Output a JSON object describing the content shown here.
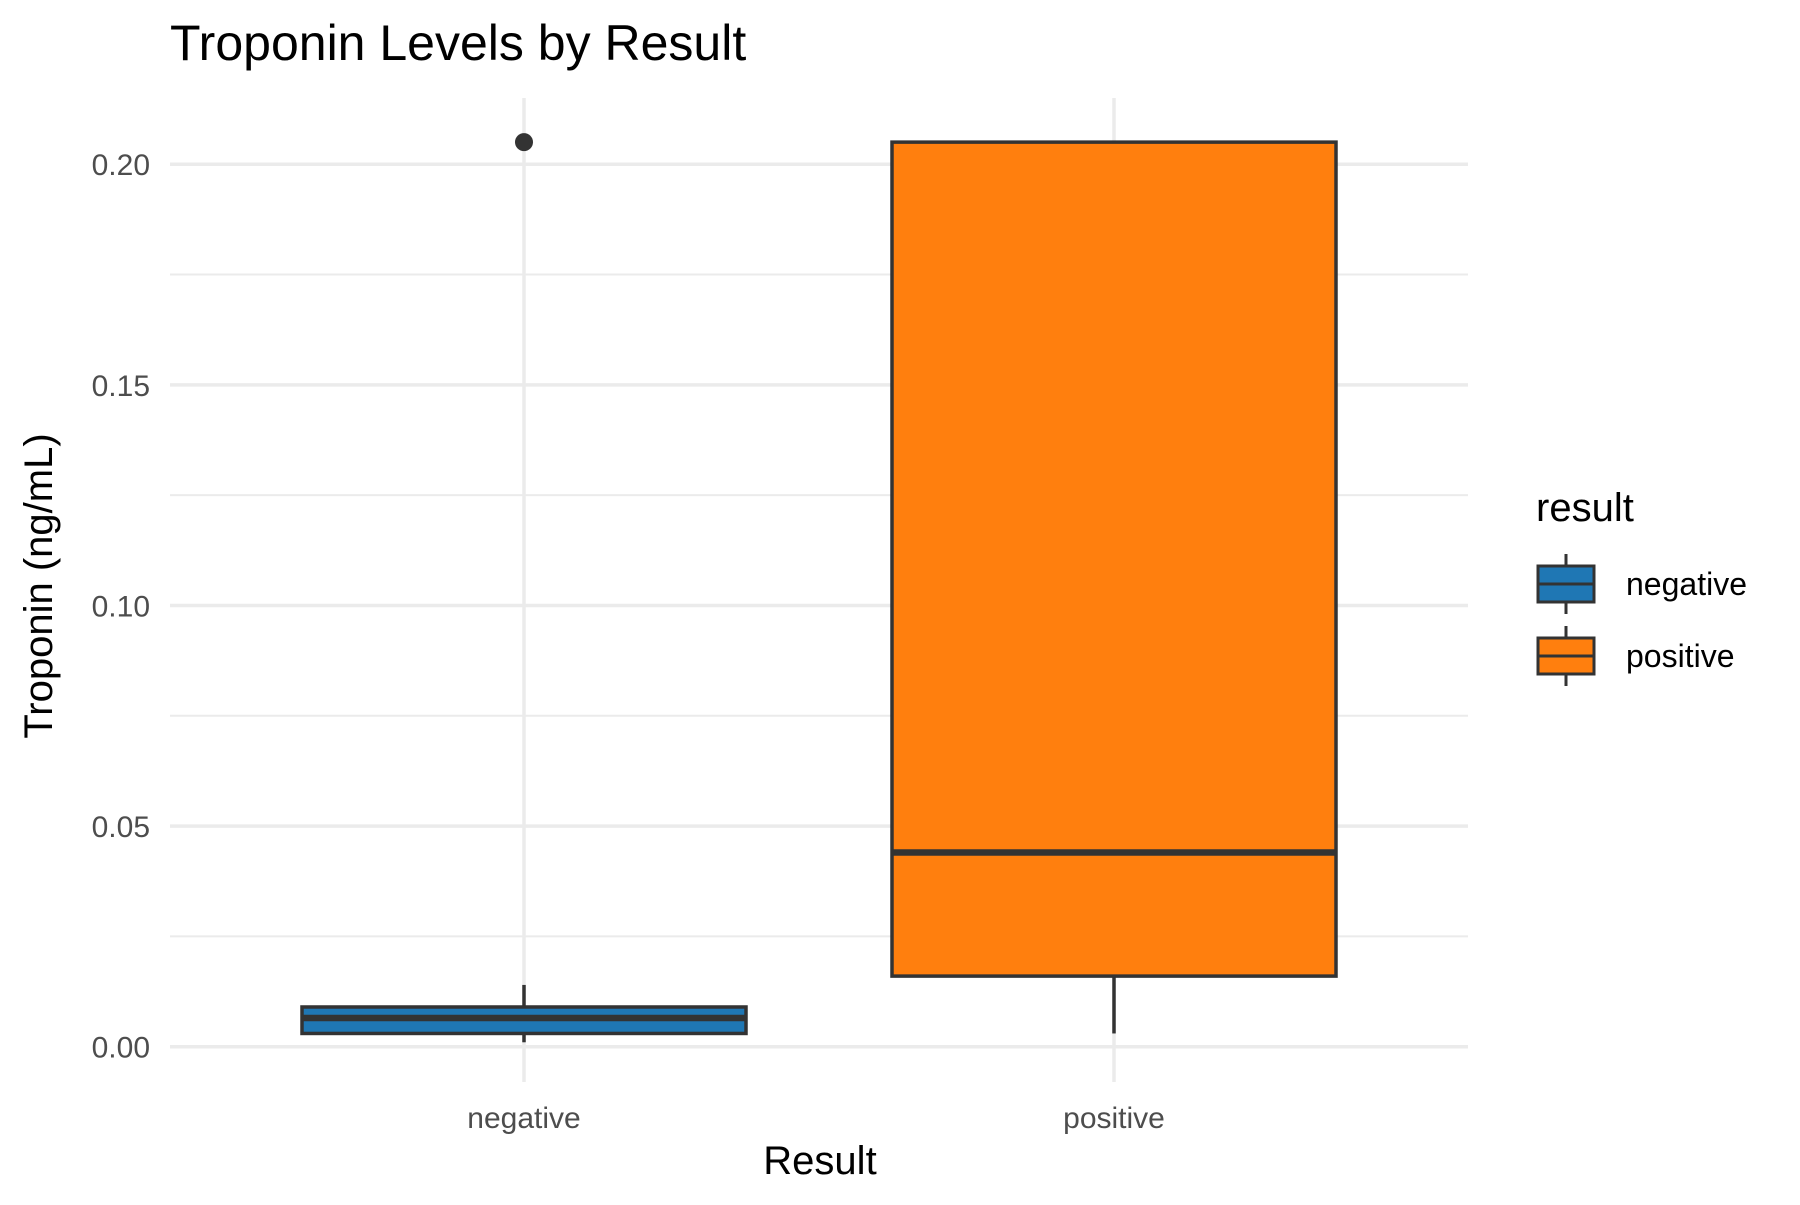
{
  "chart_data": {
    "type": "boxplot",
    "title": "Troponin Levels by Result",
    "xlabel": "Result",
    "ylabel": "Troponin (ng/mL)",
    "categories": [
      "negative",
      "positive"
    ],
    "ylim": [
      -0.008,
      0.215
    ],
    "yticks": [
      0.0,
      0.05,
      0.1,
      0.15,
      0.2
    ],
    "ytick_labels": [
      "0.00",
      "0.05",
      "0.10",
      "0.15",
      "0.20"
    ],
    "grid": true,
    "legend": {
      "title": "result",
      "placement": "right",
      "entries": [
        "negative",
        "positive"
      ]
    },
    "series": [
      {
        "category": "negative",
        "color": "#1f77b4",
        "whisker_low": 0.001,
        "q1": 0.003,
        "median": 0.0065,
        "q3": 0.009,
        "whisker_high": 0.014,
        "outliers": [
          0.205
        ]
      },
      {
        "category": "positive",
        "color": "#ff7f0e",
        "whisker_low": 0.003,
        "q1": 0.016,
        "median": 0.044,
        "q3": 0.205,
        "whisker_high": 0.205,
        "outliers": []
      }
    ]
  }
}
